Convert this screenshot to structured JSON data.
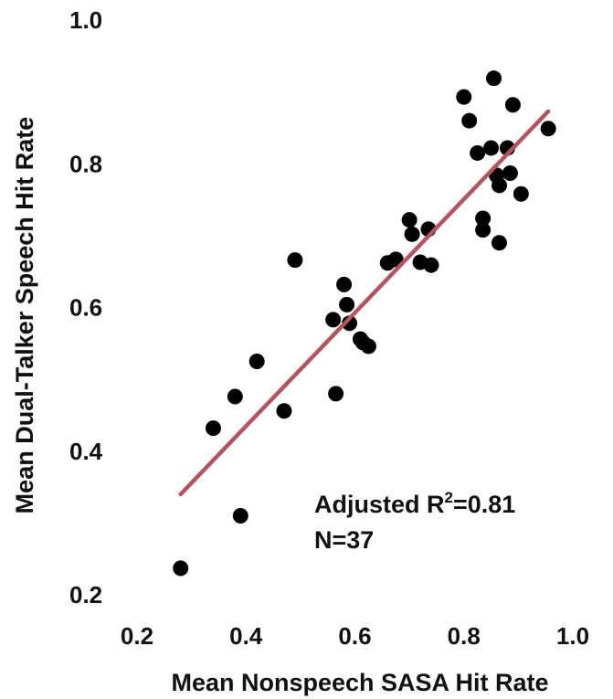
{
  "chart_data": {
    "type": "scatter",
    "xlabel": "Mean Nonspeech SASA Hit Rate",
    "ylabel": "Mean Dual-Talker Speech Hit Rate",
    "xlim": [
      0.2,
      1.0
    ],
    "ylim": [
      0.2,
      1.0
    ],
    "x_ticks": [
      "0.2",
      "0.4",
      "0.6",
      "0.8",
      "1.0"
    ],
    "y_ticks": [
      "0.2",
      "0.4",
      "0.6",
      "0.8",
      "1.0"
    ],
    "grid": false,
    "colors": {
      "points": "#000000",
      "fit_line": "#b5545f"
    },
    "fit_line": {
      "x": [
        0.28,
        0.955
      ],
      "y": [
        0.34,
        0.873
      ]
    },
    "annotations": {
      "r2_prefix": "Adjusted R",
      "r2_sup": "2",
      "r2_suffix": "=0.81",
      "n": "N=37"
    },
    "points": [
      {
        "x": 0.28,
        "y": 0.237
      },
      {
        "x": 0.34,
        "y": 0.432
      },
      {
        "x": 0.38,
        "y": 0.476
      },
      {
        "x": 0.39,
        "y": 0.31
      },
      {
        "x": 0.42,
        "y": 0.525
      },
      {
        "x": 0.47,
        "y": 0.456
      },
      {
        "x": 0.49,
        "y": 0.666
      },
      {
        "x": 0.56,
        "y": 0.583
      },
      {
        "x": 0.565,
        "y": 0.48
      },
      {
        "x": 0.58,
        "y": 0.632
      },
      {
        "x": 0.585,
        "y": 0.604
      },
      {
        "x": 0.59,
        "y": 0.578
      },
      {
        "x": 0.61,
        "y": 0.556
      },
      {
        "x": 0.615,
        "y": 0.551
      },
      {
        "x": 0.625,
        "y": 0.546
      },
      {
        "x": 0.66,
        "y": 0.662
      },
      {
        "x": 0.675,
        "y": 0.667
      },
      {
        "x": 0.7,
        "y": 0.722
      },
      {
        "x": 0.705,
        "y": 0.702
      },
      {
        "x": 0.72,
        "y": 0.663
      },
      {
        "x": 0.735,
        "y": 0.709
      },
      {
        "x": 0.74,
        "y": 0.659
      },
      {
        "x": 0.8,
        "y": 0.893
      },
      {
        "x": 0.81,
        "y": 0.86
      },
      {
        "x": 0.825,
        "y": 0.815
      },
      {
        "x": 0.835,
        "y": 0.724
      },
      {
        "x": 0.835,
        "y": 0.708
      },
      {
        "x": 0.85,
        "y": 0.822
      },
      {
        "x": 0.855,
        "y": 0.919
      },
      {
        "x": 0.86,
        "y": 0.784
      },
      {
        "x": 0.865,
        "y": 0.77
      },
      {
        "x": 0.865,
        "y": 0.69
      },
      {
        "x": 0.88,
        "y": 0.822
      },
      {
        "x": 0.885,
        "y": 0.787
      },
      {
        "x": 0.89,
        "y": 0.882
      },
      {
        "x": 0.905,
        "y": 0.758
      },
      {
        "x": 0.955,
        "y": 0.849
      }
    ]
  }
}
